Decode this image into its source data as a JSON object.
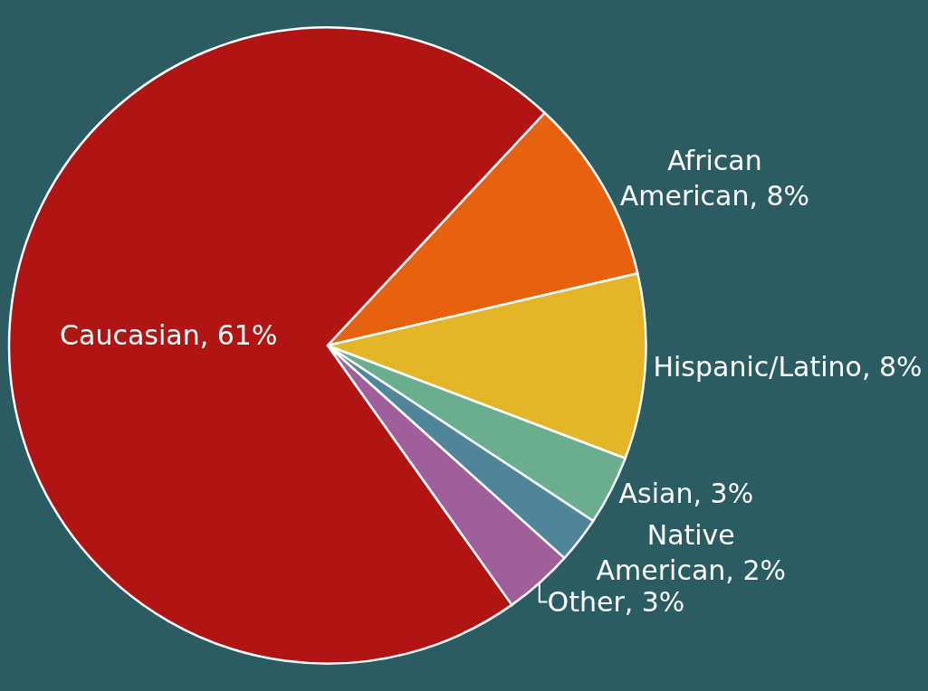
{
  "chart_data": {
    "type": "pie",
    "categories": [
      "African American",
      "Hispanic/Latino",
      "Asian",
      "Native American",
      "Other",
      "Caucasian"
    ],
    "values": [
      8,
      8,
      3,
      2,
      3,
      61
    ],
    "value_labels": [
      "8%",
      "8%",
      "3%",
      "2%",
      "3%",
      "61%"
    ],
    "colors": [
      "#e8610f",
      "#e3b527",
      "#6aae8f",
      "#4f8499",
      "#9e5f9a",
      "#b01513"
    ],
    "legend": false
  }
}
